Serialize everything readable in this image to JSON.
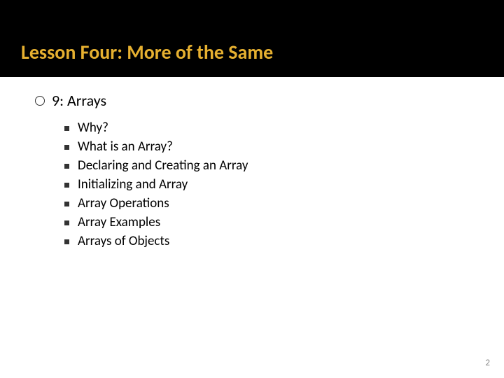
{
  "title": "Lesson Four:  More of the Same",
  "section": {
    "label": "9:  Arrays",
    "items": [
      "Why?",
      "What is an Array?",
      "Declaring and Creating an Array",
      "Initializing and Array",
      "Array Operations",
      "Array Examples",
      "Arrays of Objects"
    ]
  },
  "page_number": "2",
  "colors": {
    "title_bg": "#000000",
    "title_text": "#e6b030",
    "body_text": "#000000",
    "page_num": "#888888"
  },
  "fonts": {
    "family": "Calibri",
    "title_size": 28,
    "level1_size": 22,
    "level2_size": 19,
    "page_num_size": 13
  }
}
